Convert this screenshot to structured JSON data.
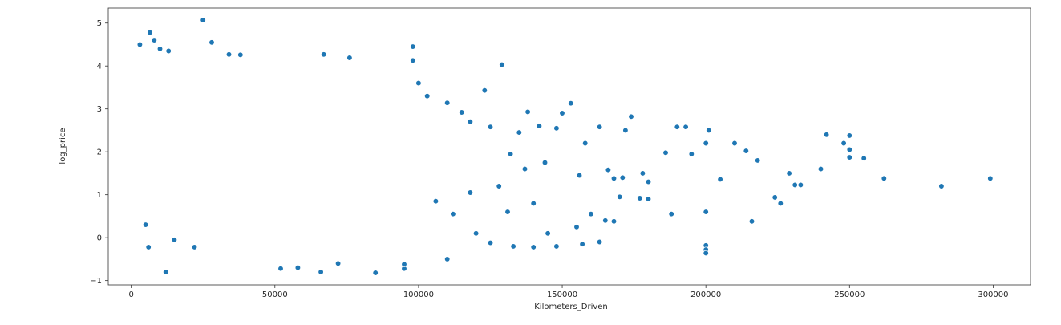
{
  "chart_data": {
    "type": "scatter",
    "title": "",
    "xlabel": "Kilometers_Driven",
    "ylabel": "log_price",
    "xlim": [
      -8000,
      313000
    ],
    "ylim": [
      -1.1,
      5.35
    ],
    "x_ticks": [
      0,
      50000,
      100000,
      150000,
      200000,
      250000,
      300000
    ],
    "y_ticks": [
      -1,
      0,
      1,
      2,
      3,
      4,
      5
    ],
    "grid": false,
    "legend": "none",
    "marker_color": "#1f77b4",
    "marker_edge_color": "#ffffff",
    "points": [
      [
        25000,
        5.07
      ],
      [
        6500,
        4.78
      ],
      [
        8000,
        4.6
      ],
      [
        3000,
        4.5
      ],
      [
        28000,
        4.55
      ],
      [
        34000,
        4.27
      ],
      [
        38000,
        4.26
      ],
      [
        13000,
        4.35
      ],
      [
        10000,
        4.4
      ],
      [
        98000,
        4.45
      ],
      [
        98000,
        4.13
      ],
      [
        76000,
        4.19
      ],
      [
        67000,
        4.27
      ],
      [
        129000,
        4.03
      ],
      [
        123000,
        3.43
      ],
      [
        153000,
        3.13
      ],
      [
        163000,
        2.58
      ],
      [
        172000,
        2.5
      ],
      [
        174000,
        2.82
      ],
      [
        190000,
        2.58
      ],
      [
        193000,
        2.58
      ],
      [
        195000,
        1.95
      ],
      [
        201000,
        2.5
      ],
      [
        205000,
        1.36
      ],
      [
        210000,
        2.2
      ],
      [
        214000,
        2.02
      ],
      [
        216000,
        0.38
      ],
      [
        218000,
        1.8
      ],
      [
        224000,
        0.94
      ],
      [
        226000,
        0.8
      ],
      [
        229000,
        1.5
      ],
      [
        231000,
        1.23
      ],
      [
        233000,
        1.23
      ],
      [
        240000,
        1.6
      ],
      [
        242000,
        2.4
      ],
      [
        248000,
        2.2
      ],
      [
        250000,
        2.38
      ],
      [
        250000,
        1.87
      ],
      [
        250000,
        2.05
      ],
      [
        255000,
        1.85
      ],
      [
        262000,
        1.38
      ],
      [
        282000,
        1.2
      ],
      [
        299000,
        1.38
      ],
      [
        200000,
        -0.18
      ],
      [
        200000,
        -0.28
      ],
      [
        200000,
        -0.36
      ],
      [
        200000,
        0.6
      ],
      [
        200000,
        2.2
      ],
      [
        188000,
        0.55
      ],
      [
        186000,
        1.98
      ],
      [
        180000,
        1.3
      ],
      [
        180000,
        0.9
      ],
      [
        178000,
        1.5
      ],
      [
        168000,
        1.38
      ],
      [
        170000,
        0.95
      ],
      [
        168000,
        0.38
      ],
      [
        163000,
        -0.1
      ],
      [
        12000,
        -0.8
      ],
      [
        5000,
        0.3
      ],
      [
        6000,
        -0.22
      ],
      [
        15000,
        -0.05
      ],
      [
        22000,
        -0.22
      ],
      [
        52000,
        -0.72
      ],
      [
        58000,
        -0.7
      ],
      [
        66000,
        -0.8
      ],
      [
        72000,
        -0.6
      ],
      [
        85000,
        -0.82
      ],
      [
        95000,
        -0.72
      ],
      [
        95000,
        -0.62
      ],
      [
        110000,
        -0.5
      ],
      [
        140000,
        -0.22
      ],
      [
        148000,
        -0.2
      ],
      [
        157000,
        -0.15
      ],
      [
        133000,
        -0.2
      ],
      [
        120000,
        0.1
      ],
      [
        125000,
        -0.12
      ],
      [
        145000,
        0.1
      ],
      [
        155000,
        0.25
      ],
      [
        160000,
        0.55
      ],
      [
        165000,
        0.4
      ],
      [
        138000,
        2.93
      ],
      [
        135000,
        2.45
      ],
      [
        142000,
        2.6
      ],
      [
        148000,
        2.55
      ],
      [
        150000,
        2.9
      ],
      [
        158000,
        2.2
      ],
      [
        115000,
        2.92
      ],
      [
        110000,
        3.14
      ],
      [
        103000,
        3.3
      ],
      [
        100000,
        3.6
      ],
      [
        118000,
        2.7
      ],
      [
        125000,
        2.58
      ],
      [
        132000,
        1.95
      ],
      [
        137000,
        1.6
      ],
      [
        144000,
        1.75
      ],
      [
        156000,
        1.45
      ],
      [
        166000,
        1.58
      ],
      [
        171000,
        1.4
      ],
      [
        177000,
        0.92
      ],
      [
        140000,
        0.8
      ],
      [
        128000,
        1.2
      ],
      [
        118000,
        1.05
      ],
      [
        112000,
        0.55
      ],
      [
        106000,
        0.85
      ],
      [
        131000,
        0.6
      ]
    ]
  }
}
